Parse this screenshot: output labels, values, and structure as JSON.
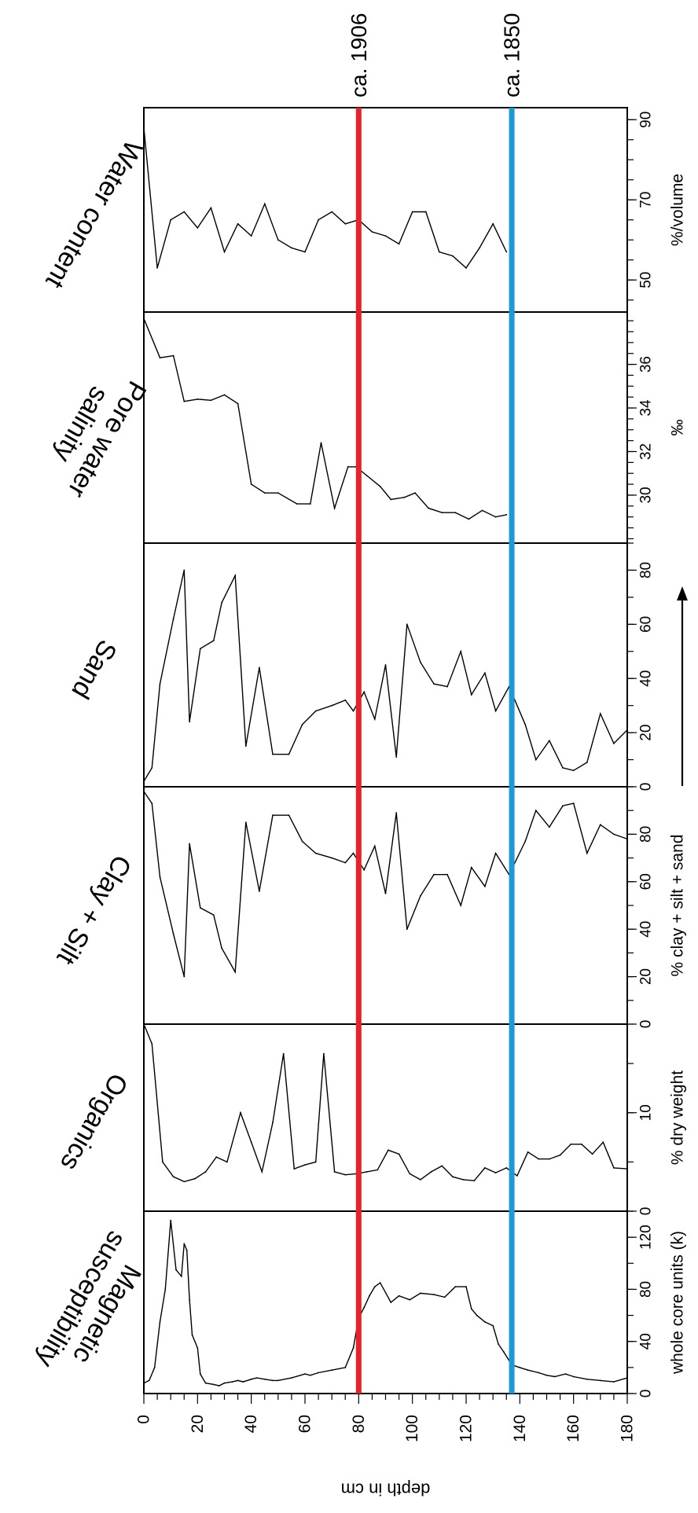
{
  "chart_data": {
    "type": "line",
    "depth_axis": {
      "label": "depth in cm",
      "range": [
        0,
        180
      ],
      "ticks": [
        "0",
        "20",
        "40",
        "60",
        "80",
        "100",
        "120",
        "140",
        "160",
        "180"
      ]
    },
    "markers": [
      {
        "label": "ca. 1906",
        "depth": 80,
        "color": "#e8222a"
      },
      {
        "label": "ca. 1850",
        "depth": 137,
        "color": "#1b9ad6"
      }
    ],
    "grain_size_arrow": true,
    "panels": [
      {
        "title": [
          "Water content"
        ],
        "unit": "%/volume",
        "range": [
          42,
          93
        ],
        "ticks": [
          50,
          70,
          90
        ],
        "minor_step": 5,
        "x": [
          0,
          5,
          10,
          15,
          20,
          25,
          30,
          35,
          40,
          45,
          50,
          55,
          60,
          65,
          70,
          75,
          80,
          85,
          90,
          95,
          100,
          105,
          110,
          115,
          120,
          125,
          130,
          135
        ],
        "y": [
          88,
          53,
          65,
          67,
          63,
          68,
          57,
          64,
          61,
          69,
          60,
          58,
          57,
          65,
          67,
          64,
          65,
          62,
          61,
          59,
          67,
          67,
          57,
          56,
          53,
          58,
          64,
          57
        ]
      },
      {
        "title": [
          "Pore water",
          "salinity"
        ],
        "unit": "‰",
        "range": [
          27.8,
          38.4
        ],
        "ticks": [
          30,
          32,
          34,
          36
        ],
        "minor_step": 0.5,
        "x": [
          0,
          6,
          11,
          15,
          20,
          25,
          30,
          35,
          40,
          45,
          50,
          57,
          62,
          66,
          71,
          76,
          79,
          83,
          88,
          92,
          97,
          101,
          106,
          111,
          116,
          121,
          126,
          131,
          135
        ],
        "y": [
          38.1,
          36.3,
          36.4,
          34.3,
          34.4,
          34.35,
          34.6,
          34.2,
          30.5,
          30.1,
          30.1,
          29.6,
          29.6,
          32.4,
          29.4,
          31.3,
          31.3,
          30.9,
          30.4,
          29.8,
          29.9,
          30.1,
          29.4,
          29.2,
          29.2,
          28.9,
          29.3,
          29.0,
          29.1
        ]
      },
      {
        "title": [
          "Sand"
        ],
        "unit": "",
        "range": [
          0,
          90
        ],
        "ticks": [
          0,
          20,
          40,
          60,
          80
        ],
        "minor_step": 10,
        "x": [
          0,
          3,
          6,
          11,
          15,
          17,
          21,
          26,
          29,
          34,
          38,
          43,
          48,
          54,
          59,
          64,
          70,
          75,
          78,
          82,
          86,
          90,
          94,
          98,
          103,
          108,
          113,
          118,
          122,
          127,
          131,
          136,
          142,
          146,
          151,
          156,
          160,
          165,
          170,
          175,
          180
        ],
        "y": [
          2,
          7,
          38,
          62,
          80,
          24,
          51,
          54,
          68,
          78,
          15,
          44,
          12,
          12,
          23,
          28,
          30,
          32,
          28,
          35,
          25,
          45,
          11,
          60,
          46,
          38,
          37,
          50,
          34,
          42,
          28,
          37,
          23,
          10,
          17,
          7,
          6,
          9,
          27,
          16,
          21
        ]
      },
      {
        "title": [
          "Clay + Silt"
        ],
        "unit": "% clay + silt + sand",
        "range": [
          0,
          100
        ],
        "ticks": [
          0,
          20,
          40,
          60,
          80
        ],
        "minor_step": 10,
        "x": [
          0,
          3,
          6,
          11,
          15,
          17,
          21,
          26,
          29,
          34,
          38,
          43,
          48,
          54,
          59,
          64,
          70,
          75,
          78,
          82,
          86,
          90,
          94,
          98,
          103,
          108,
          113,
          118,
          122,
          127,
          131,
          136,
          142,
          146,
          151,
          156,
          160,
          165,
          170,
          175,
          180
        ],
        "y": [
          98,
          93,
          62,
          38,
          20,
          76,
          49,
          46,
          32,
          22,
          85,
          56,
          88,
          88,
          77,
          72,
          70,
          68,
          72,
          65,
          75,
          55,
          89,
          40,
          54,
          63,
          63,
          50,
          66,
          58,
          72,
          63,
          77,
          90,
          83,
          92,
          93,
          72,
          84,
          80,
          78
        ]
      },
      {
        "title": [
          "Organics"
        ],
        "unit": "% dry weight",
        "range": [
          0,
          19
        ],
        "ticks": [
          0,
          10
        ],
        "minor_step": 5,
        "x": [
          0,
          3,
          7,
          11,
          15,
          19,
          23,
          27,
          31,
          36,
          40,
          44,
          48,
          52,
          56,
          60,
          64,
          67,
          71,
          75,
          79,
          83,
          87,
          91,
          95,
          99,
          103,
          107,
          111,
          115,
          119,
          123,
          127,
          131,
          135,
          139,
          143,
          147,
          151,
          155,
          159,
          163,
          167,
          171,
          175,
          180
        ],
        "y": [
          19,
          17,
          5,
          3.5,
          3,
          3.3,
          4,
          5.5,
          5,
          10,
          7,
          4,
          9,
          16,
          4.3,
          4.7,
          5,
          16,
          4,
          3.7,
          3.8,
          4,
          4.2,
          6.2,
          5.8,
          3.8,
          3.2,
          4,
          4.6,
          3.5,
          3.2,
          3.1,
          4.4,
          3.9,
          4.4,
          3.6,
          6,
          5.3,
          5.3,
          5.7,
          6.8,
          6.8,
          5.8,
          7,
          4.4,
          4.3
        ]
      },
      {
        "title": [
          "Magnetic",
          "susceptibility"
        ],
        "unit": "whole core units (k)",
        "range": [
          0,
          140
        ],
        "ticks": [
          0,
          40,
          80,
          120
        ],
        "minor_step": 20,
        "x": [
          0,
          2,
          4,
          6,
          8,
          10,
          12,
          14,
          15,
          16,
          17,
          18,
          20,
          21,
          23,
          26,
          28,
          30,
          33,
          35,
          37,
          40,
          42,
          45,
          48,
          50,
          55,
          60,
          62,
          65,
          70,
          75,
          78,
          80,
          82,
          84,
          86,
          88,
          92,
          95,
          99,
          103,
          108,
          112,
          116,
          120,
          122,
          124,
          127,
          130,
          132,
          134,
          137,
          140,
          143,
          147,
          150,
          153,
          157,
          160,
          165,
          170,
          175,
          180
        ],
        "y": [
          8,
          10,
          20,
          55,
          80,
          133,
          95,
          90,
          115,
          110,
          72,
          45,
          35,
          15,
          8,
          7,
          6,
          8,
          9,
          10,
          9,
          11,
          12,
          11,
          10,
          10,
          12,
          15,
          14,
          16,
          18,
          20,
          35,
          58,
          66,
          75,
          82,
          85,
          70,
          75,
          72,
          77,
          76,
          74,
          82,
          82,
          65,
          60,
          55,
          52,
          38,
          32,
          22,
          20,
          18,
          16,
          14,
          13,
          15,
          13,
          11,
          10,
          9,
          12
        ]
      }
    ]
  }
}
